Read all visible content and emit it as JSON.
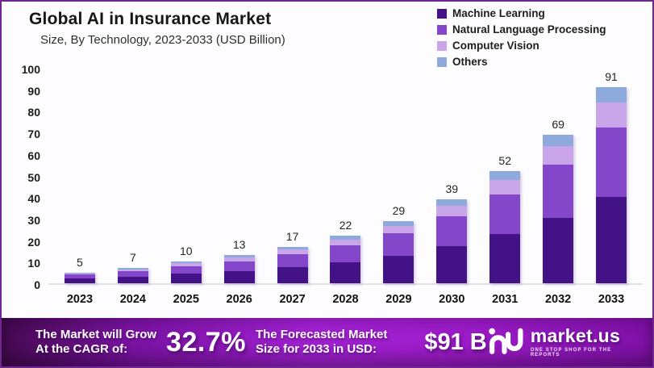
{
  "header": {
    "title": "Global AI in Insurance Market",
    "subtitle": "Size, By Technology, 2023-2033 (USD Billion)"
  },
  "chart_data": {
    "type": "bar",
    "stacked": true,
    "title": "Global AI in Insurance Market",
    "subtitle": "Size, By Technology, 2023-2033 (USD Billion)",
    "unit": "USD Billion",
    "categories": [
      "2023",
      "2024",
      "2025",
      "2026",
      "2027",
      "2028",
      "2029",
      "2030",
      "2031",
      "2032",
      "2033"
    ],
    "series": [
      {
        "name": "Machine Learning",
        "color": "#431287",
        "values": [
          2.2,
          3.1,
          4.4,
          5.7,
          7.5,
          9.7,
          12.8,
          17.2,
          22.9,
          30.4,
          40.1
        ]
      },
      {
        "name": "Natural Language Processing",
        "color": "#8547C9",
        "values": [
          1.8,
          2.5,
          3.6,
          4.6,
          6.0,
          7.8,
          10.3,
          13.8,
          18.4,
          24.5,
          32.3
        ]
      },
      {
        "name": "Computer Vision",
        "color": "#C9A5EA",
        "values": [
          0.6,
          0.9,
          1.2,
          1.6,
          2.1,
          2.7,
          3.6,
          4.9,
          6.5,
          8.6,
          11.4
        ]
      },
      {
        "name": "Others",
        "color": "#8EA9DC",
        "values": [
          0.4,
          0.5,
          0.8,
          1.1,
          1.4,
          1.8,
          2.3,
          3.1,
          4.2,
          5.5,
          7.2
        ]
      }
    ],
    "totals": [
      5,
      7,
      10,
      13,
      17,
      22,
      29,
      39,
      52,
      69,
      91
    ],
    "ylim": [
      0,
      100
    ],
    "yticks": [
      0,
      10,
      20,
      30,
      40,
      50,
      60,
      70,
      80,
      90,
      100
    ],
    "grid": false,
    "legend_position": "top-right"
  },
  "banner": {
    "cagr_label_line1": "The Market will Grow",
    "cagr_label_line2": "At the CAGR of:",
    "cagr_value": "32.7%",
    "forecast_label_line1": "The Forecasted Market",
    "forecast_label_line2": "Size for 2033 in USD:",
    "forecast_value": "$91 B",
    "brand": {
      "name": "market.us",
      "tagline": "ONE STOP SHOP FOR THE REPORTS"
    },
    "gradient_colors": [
      "#44094f",
      "#a220d4",
      "#7e10a6"
    ]
  }
}
